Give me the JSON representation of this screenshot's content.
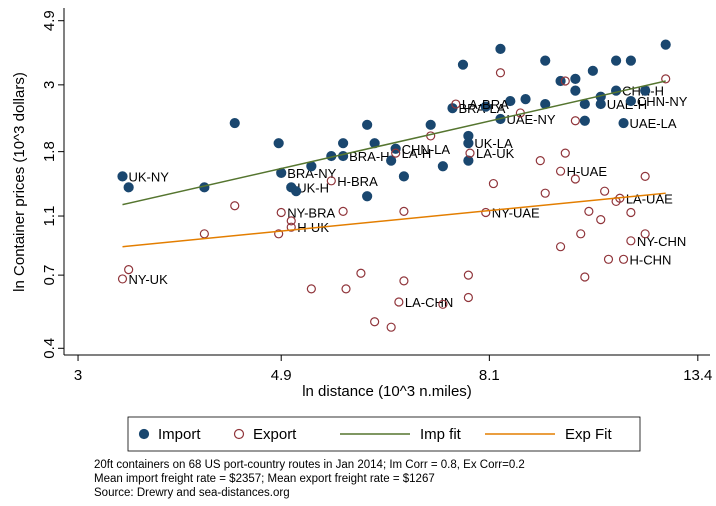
{
  "chart_data": {
    "type": "scatter",
    "x_label": "ln distance (10^3 n.miles)",
    "y_label": "ln Container prices (10^3 dollars)",
    "xlog": true,
    "ylog": true,
    "grid": false,
    "xlim": [
      2.9,
      13.8
    ],
    "ylim": [
      0.38,
      5.4
    ],
    "xticks": [
      3,
      4.9,
      8.1,
      13.4
    ],
    "yticks": [
      0.4,
      0.7,
      1.1,
      1.8,
      3,
      4.9
    ],
    "series": [
      {
        "name": "Import",
        "color": "#1a476f",
        "style": "filled-dot",
        "x": [
          3.34,
          3.39,
          4.07,
          4.38,
          4.87,
          4.9,
          5.02,
          5.08,
          5.27,
          5.53,
          5.69,
          5.69,
          6.03,
          6.03,
          6.14,
          6.39,
          6.59,
          6.46,
          7.03,
          7.24,
          7.6,
          7.7,
          7.7,
          7.7,
          7.41,
          8.03,
          8.32,
          8.32,
          8.52,
          8.84,
          9.27,
          9.27,
          9.62,
          9.97,
          9.97,
          10.2,
          10.2,
          10.4,
          10.6,
          10.6,
          11.0,
          11.0,
          11.2,
          11.4,
          11.4,
          11.8,
          12.4
        ],
        "values": [
          1.49,
          1.37,
          1.37,
          2.24,
          1.92,
          1.53,
          1.37,
          1.33,
          1.61,
          1.74,
          1.92,
          1.74,
          2.21,
          1.28,
          1.92,
          1.68,
          1.49,
          1.84,
          2.21,
          1.61,
          3.5,
          2.03,
          1.68,
          1.92,
          2.51,
          2.54,
          3.95,
          2.31,
          2.65,
          2.69,
          3.61,
          2.59,
          3.09,
          3.14,
          2.87,
          2.59,
          2.28,
          3.34,
          2.74,
          2.59,
          3.61,
          2.87,
          2.24,
          3.61,
          2.65,
          2.87,
          4.08
        ],
        "labels": [
          "UK-NY",
          null,
          null,
          null,
          null,
          "BRA-NY",
          "UK-H",
          null,
          null,
          null,
          null,
          "BRA-H",
          null,
          null,
          null,
          null,
          null,
          "CHN-LA",
          null,
          null,
          null,
          null,
          null,
          "UK-LA",
          "BRA-LA",
          null,
          null,
          "UAE-NY",
          null,
          null,
          null,
          null,
          null,
          null,
          null,
          null,
          null,
          null,
          null,
          "UAE-H",
          null,
          "CHN-H",
          "UAE-LA",
          null,
          "CHN-NY",
          null,
          null
        ]
      },
      {
        "name": "Export",
        "color": "#90353b",
        "style": "hollow-dot",
        "x": [
          3.34,
          3.39,
          4.07,
          4.38,
          4.87,
          4.9,
          5.02,
          5.02,
          5.27,
          5.53,
          5.69,
          5.73,
          5.94,
          6.14,
          6.39,
          6.46,
          6.51,
          6.59,
          6.59,
          7.03,
          7.24,
          7.7,
          7.7,
          7.47,
          7.73,
          8.03,
          8.18,
          8.32,
          8.73,
          9.16,
          9.27,
          9.62,
          9.73,
          9.62,
          9.73,
          9.97,
          9.97,
          10.1,
          10.2,
          10.3,
          10.6,
          10.7,
          10.8,
          11.0,
          11.1,
          11.4,
          11.4,
          11.2,
          11.8,
          11.8,
          12.4
        ],
        "values": [
          0.68,
          0.73,
          0.96,
          1.19,
          0.96,
          1.13,
          1.01,
          1.06,
          0.63,
          1.44,
          1.14,
          0.63,
          0.71,
          0.49,
          0.47,
          1.78,
          0.57,
          1.14,
          0.67,
          2.03,
          0.56,
          0.7,
          0.59,
          2.59,
          1.78,
          1.13,
          1.41,
          3.29,
          2.42,
          1.68,
          1.31,
          0.87,
          1.78,
          1.55,
          3.09,
          2.28,
          1.46,
          0.96,
          0.69,
          1.14,
          1.07,
          1.33,
          0.79,
          1.23,
          1.26,
          1.13,
          0.91,
          0.79,
          1.49,
          0.96,
          3.14
        ],
        "labels": [
          "NY-UK",
          null,
          null,
          null,
          null,
          "NY-BRA",
          "H-UK",
          null,
          null,
          "H-BRA",
          null,
          null,
          null,
          null,
          null,
          "LA-H",
          "LA-CHN",
          null,
          null,
          null,
          null,
          null,
          null,
          "LA-BRA",
          "LA-UK",
          "NY-UAE",
          null,
          null,
          null,
          null,
          null,
          null,
          null,
          "H-UAE",
          null,
          null,
          null,
          null,
          null,
          null,
          null,
          null,
          null,
          null,
          "LA-UAE",
          null,
          "NY-CHN",
          "H-CHN",
          null,
          null,
          null
        ]
      },
      {
        "name": "Imp fit",
        "color": "#55752f",
        "style": "line",
        "x": [
          3.34,
          12.4
        ],
        "values": [
          1.2,
          3.09
        ]
      },
      {
        "name": "Exp Fit",
        "color": "#e37e00",
        "style": "line",
        "x": [
          3.34,
          12.4
        ],
        "values": [
          0.87,
          1.31
        ]
      }
    ],
    "notes": [
      "20ft containers on 68 US port-country routes in Jan 2014; Im Corr = 0.8, Ex Corr=0.2",
      "Mean import freight rate = $2357; Mean export freight rate = $1267",
      "Source: Drewry and sea-distances.org"
    ]
  }
}
